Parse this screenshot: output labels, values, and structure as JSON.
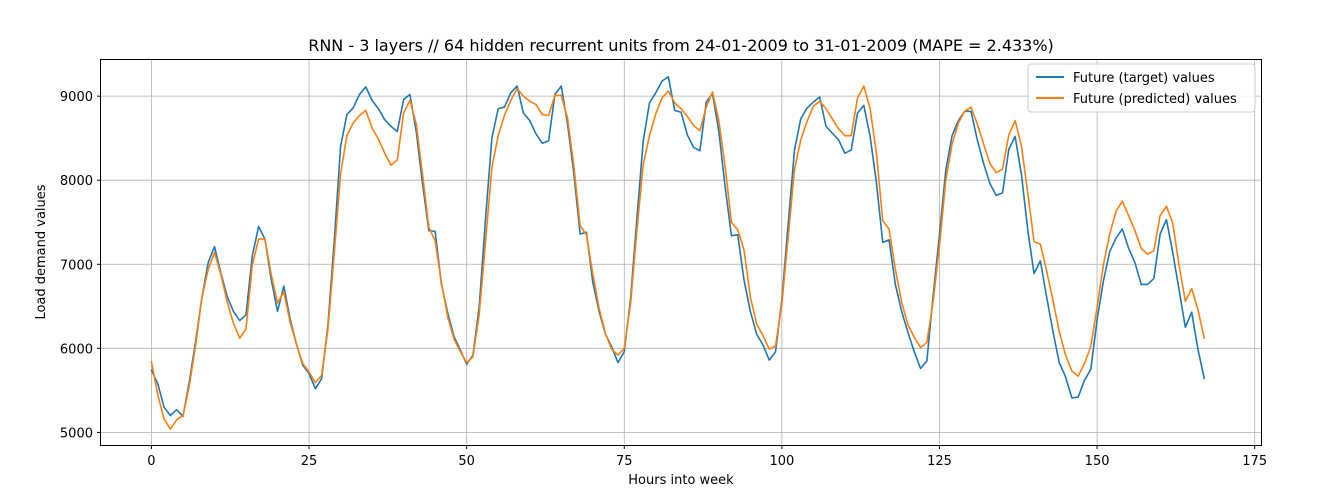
{
  "chart_data": {
    "type": "line",
    "title": "RNN - 3 layers // 64 hidden recurrent units from 24-01-2009 to 31-01-2009 (MAPE = 2.433%)",
    "xlabel": "Hours into week",
    "ylabel": "Load demand values",
    "xlim": [
      -8,
      176
    ],
    "ylim": [
      4850,
      9430
    ],
    "xticks": [
      0,
      25,
      50,
      75,
      100,
      125,
      150,
      175
    ],
    "yticks": [
      5000,
      6000,
      7000,
      8000,
      9000
    ],
    "grid": true,
    "legend_position": "top-right",
    "series": [
      {
        "name": "Future (target) values",
        "color": "#1f77b4",
        "values": [
          5740,
          5580,
          5300,
          5200,
          5270,
          5190,
          5600,
          6080,
          6600,
          7020,
          7210,
          6900,
          6620,
          6440,
          6330,
          6400,
          7100,
          7450,
          7300,
          6820,
          6440,
          6740,
          6350,
          6050,
          5800,
          5700,
          5520,
          5640,
          6280,
          7280,
          8400,
          8780,
          8860,
          9020,
          9110,
          8950,
          8850,
          8720,
          8640,
          8580,
          8960,
          9020,
          8580,
          7960,
          7400,
          7390,
          6760,
          6420,
          6140,
          5980,
          5810,
          5920,
          6500,
          7550,
          8500,
          8850,
          8870,
          9040,
          9120,
          8800,
          8710,
          8550,
          8440,
          8470,
          9020,
          9120,
          8670,
          8080,
          7360,
          7380,
          6790,
          6440,
          6170,
          6020,
          5830,
          5960,
          6590,
          7540,
          8460,
          8920,
          9040,
          9180,
          9230,
          8830,
          8810,
          8540,
          8390,
          8350,
          8930,
          9030,
          8580,
          7920,
          7340,
          7350,
          6810,
          6440,
          6170,
          6040,
          5860,
          5960,
          6580,
          7480,
          8360,
          8730,
          8860,
          8930,
          8990,
          8640,
          8560,
          8480,
          8320,
          8360,
          8800,
          8890,
          8520,
          7970,
          7260,
          7290,
          6760,
          6440,
          6190,
          5960,
          5760,
          5850,
          6630,
          7350,
          8120,
          8530,
          8710,
          8820,
          8820,
          8480,
          8200,
          7960,
          7820,
          7850,
          8370,
          8520,
          8070,
          7410,
          6890,
          7040,
          6610,
          6200,
          5830,
          5660,
          5410,
          5420,
          5620,
          5750,
          6340,
          6800,
          7150,
          7310,
          7420,
          7190,
          7020,
          6760,
          6760,
          6830,
          7360,
          7530,
          7140,
          6700,
          6250,
          6430,
          5990,
          5640
        ]
      },
      {
        "name": "Future (predicted) values",
        "color": "#ff7f0e",
        "values": [
          5840,
          5450,
          5160,
          5040,
          5150,
          5200,
          5550,
          6030,
          6600,
          6940,
          7140,
          6880,
          6560,
          6300,
          6120,
          6230,
          6990,
          7300,
          7300,
          6880,
          6540,
          6670,
          6310,
          6050,
          5820,
          5720,
          5590,
          5680,
          6230,
          7130,
          8070,
          8530,
          8680,
          8770,
          8830,
          8620,
          8490,
          8320,
          8180,
          8240,
          8800,
          8950,
          8670,
          8070,
          7440,
          7280,
          6780,
          6370,
          6110,
          5960,
          5830,
          5900,
          6410,
          7270,
          8150,
          8530,
          8770,
          8950,
          9090,
          9000,
          8940,
          8900,
          8780,
          8770,
          9010,
          9010,
          8740,
          8170,
          7460,
          7350,
          6890,
          6480,
          6180,
          5990,
          5920,
          6000,
          6530,
          7400,
          8180,
          8530,
          8790,
          8980,
          9060,
          8920,
          8850,
          8760,
          8650,
          8590,
          8870,
          9050,
          8710,
          8160,
          7500,
          7410,
          7170,
          6610,
          6290,
          6150,
          5990,
          6030,
          6530,
          7320,
          8130,
          8480,
          8700,
          8880,
          8940,
          8850,
          8730,
          8610,
          8530,
          8530,
          8980,
          9120,
          8850,
          8320,
          7520,
          7420,
          6940,
          6550,
          6280,
          6130,
          6010,
          6070,
          6560,
          7220,
          8000,
          8430,
          8680,
          8820,
          8870,
          8670,
          8430,
          8200,
          8090,
          8130,
          8540,
          8710,
          8410,
          7850,
          7270,
          7240,
          6920,
          6570,
          6200,
          5920,
          5730,
          5670,
          5820,
          6020,
          6490,
          6990,
          7360,
          7630,
          7750,
          7580,
          7400,
          7190,
          7120,
          7160,
          7580,
          7690,
          7490,
          6990,
          6560,
          6710,
          6460,
          6120
        ]
      }
    ]
  }
}
